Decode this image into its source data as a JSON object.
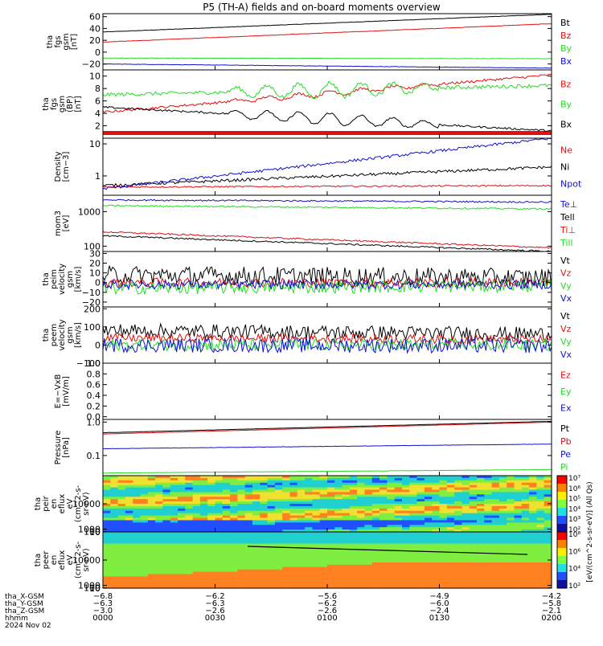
{
  "title": "P5 (TH-A) fields and on-board moments overview",
  "colors": {
    "black": "#000000",
    "red": "#e01010",
    "green": "#22dd22",
    "blue": "#1010d0"
  },
  "chart_data": [
    {
      "type": "line",
      "ylabel": [
        "tha",
        "fgs",
        "gsm",
        "[nT]"
      ],
      "ylim": [
        -30,
        65
      ],
      "ticks": [
        "60",
        "40",
        "20",
        "0",
        "−20"
      ],
      "tick_values": [
        60,
        40,
        20,
        0,
        -20
      ],
      "series": [
        {
          "name": "Bt",
          "color": "black",
          "start": 34,
          "end": 64,
          "noise": 0.3
        },
        {
          "name": "Bz",
          "color": "red",
          "start": 17,
          "end": 48,
          "noise": 0.3
        },
        {
          "name": "By",
          "color": "green",
          "start": -10,
          "end": -11,
          "noise": 0.3
        },
        {
          "name": "Bx",
          "color": "blue",
          "start": -20,
          "end": -27,
          "noise": 0.3
        }
      ]
    },
    {
      "type": "line",
      "ylabel": [
        "tha",
        "fgs",
        "gsm",
        "(BP)",
        "[nT]"
      ],
      "ylim": [
        0,
        11
      ],
      "ticks": [
        "10",
        "8",
        "6",
        "4",
        "2"
      ],
      "tick_values": [
        10,
        8,
        6,
        4,
        2
      ],
      "series": [
        {
          "name": "Bz",
          "color": "red",
          "start": 4.2,
          "end": 10.2,
          "noise": 0.2,
          "osc": 0.4
        },
        {
          "name": "By",
          "color": "green",
          "start": 7.0,
          "end": 8.5,
          "noise": 0.3,
          "osc": 1.2
        },
        {
          "name": "Bx",
          "color": "black",
          "start": 5.0,
          "end": 1.2,
          "noise": 0.15,
          "osc": 1.0
        }
      ]
    },
    {
      "type": "line",
      "ylabel": [
        "Density",
        "[cm−3]"
      ],
      "ylim": [
        0.25,
        15
      ],
      "log": true,
      "ticks": [
        "10",
        "1"
      ],
      "tick_values": [
        10,
        1
      ],
      "series": [
        {
          "name": "Ne",
          "color": "red",
          "start": 0.45,
          "end": 0.5,
          "noise": 0.05
        },
        {
          "name": "Ni",
          "color": "black",
          "start": 0.5,
          "end": 1.9,
          "noise": 0.1
        },
        {
          "name": "Npot",
          "color": "blue",
          "start": 0.4,
          "end": 15,
          "noise": 0.1
        }
      ]
    },
    {
      "type": "line",
      "ylabel": [
        "mom3",
        "[eV]"
      ],
      "ylim": [
        70,
        3000
      ],
      "log": true,
      "ticks": [
        "1000",
        "100"
      ],
      "tick_values": [
        1000,
        100
      ],
      "series": [
        {
          "name": "Te⊥",
          "color": "blue",
          "start": 2200,
          "end": 1900,
          "noise": 0.05
        },
        {
          "name": "Tell",
          "color": "black",
          "start": 200,
          "end": 70,
          "noise": 0.05
        },
        {
          "name": "Ti⊥",
          "color": "red",
          "start": 260,
          "end": 90,
          "noise": 0.05
        },
        {
          "name": "Till",
          "color": "green",
          "start": 1500,
          "end": 1200,
          "noise": 0.05
        }
      ]
    },
    {
      "type": "line",
      "ylabel": [
        "tha",
        "peim",
        "velocity",
        "gsm",
        "[km/s]"
      ],
      "ylim": [
        -25,
        32
      ],
      "ticks": [
        "30",
        "20",
        "10",
        "0",
        "−10",
        "−20"
      ],
      "tick_values": [
        30,
        20,
        10,
        0,
        -10,
        -20
      ],
      "series": [
        {
          "name": "Vt",
          "color": "black",
          "start": 8,
          "end": 5,
          "noise": 6
        },
        {
          "name": "Vz",
          "color": "red",
          "start": 0,
          "end": 0,
          "noise": 3
        },
        {
          "name": "Vy",
          "color": "green",
          "start": -6,
          "end": -3,
          "noise": 4
        },
        {
          "name": "Vx",
          "color": "blue",
          "start": -2,
          "end": -2,
          "noise": 3
        }
      ]
    },
    {
      "type": "line",
      "ylabel": [
        "tha",
        "peem",
        "velocity",
        "gsm",
        "[km/s]"
      ],
      "ylim": [
        -100,
        210
      ],
      "ticks": [
        "200",
        "100",
        "0",
        "−100"
      ],
      "tick_values": [
        200,
        100,
        0,
        -100
      ],
      "series": [
        {
          "name": "Vt",
          "color": "black",
          "start": 80,
          "end": 60,
          "noise": 25
        },
        {
          "name": "Vz",
          "color": "red",
          "start": 40,
          "end": 30,
          "noise": 15
        },
        {
          "name": "Vy",
          "color": "green",
          "start": 0,
          "end": 0,
          "noise": 20
        },
        {
          "name": "Vx",
          "color": "blue",
          "start": 0,
          "end": -5,
          "noise": 25
        }
      ]
    },
    {
      "type": "line",
      "ylabel": [
        "E=−VxB",
        "[mV/m]"
      ],
      "ylim": [
        -0.05,
        1.0
      ],
      "ticks": [
        "1.0",
        "0.8",
        "0.6",
        "0.4",
        "0.2",
        "0.0"
      ],
      "tick_values": [
        1.0,
        0.8,
        0.6,
        0.4,
        0.2,
        0.0
      ],
      "series": [
        {
          "name": "Ez",
          "color": "red"
        },
        {
          "name": "Ey",
          "color": "green"
        },
        {
          "name": "Ex",
          "color": "blue"
        }
      ]
    },
    {
      "type": "line",
      "ylabel": [
        "Pressure",
        "[nPa]"
      ],
      "ylim": [
        0.025,
        1.2
      ],
      "log": true,
      "ticks": [
        "1.0",
        "0.1"
      ],
      "tick_values": [
        1.0,
        0.1
      ],
      "series": [
        {
          "name": "Pt",
          "color": "black",
          "start": 0.48,
          "end": 1.05,
          "noise": 0.005
        },
        {
          "name": "Pb",
          "color": "red",
          "start": 0.44,
          "end": 1.0,
          "noise": 0.005
        },
        {
          "name": "Pe",
          "color": "blue",
          "start": 0.16,
          "end": 0.22,
          "noise": 0.01
        },
        {
          "name": "Pi",
          "color": "green",
          "start": 0.03,
          "end": 0.038,
          "noise": 0.01
        }
      ]
    },
    {
      "type": "heatmap",
      "ylabel": [
        "tha",
        "peir",
        "en",
        "eflux",
        "eV",
        "(cm^2-s-",
        "sr-eV)"
      ],
      "ticks": [
        "10000",
        "1000",
        "100",
        "10"
      ],
      "tick_values": [
        10000,
        1000,
        100,
        10
      ],
      "ylim": [
        7,
        20000
      ]
    },
    {
      "type": "heatmap",
      "ylabel": [
        "tha",
        "peer",
        "en",
        "eflux",
        "eV",
        "(cm^2-s-",
        "sr-eV)"
      ],
      "ticks": [
        "10000",
        "1000",
        "100",
        "10"
      ],
      "tick_values": [
        10000,
        1000,
        100,
        10
      ],
      "ylim": [
        7,
        20000
      ]
    }
  ],
  "colorbar": {
    "label": "[eV/(cm^2-s-sr-eV)] (All Qs)",
    "ticks": [
      "10⁷",
      "10⁶",
      "10⁵",
      "10⁴",
      "10³",
      "10²"
    ],
    "ticks2": [
      "10⁸",
      "10⁶",
      "10⁴",
      "10²"
    ]
  },
  "xaxis": {
    "rows": [
      {
        "label": "tha_X-GSM",
        "values": [
          "−6.8",
          "−6.2",
          "−5.6",
          "−4.9",
          "−4.2"
        ]
      },
      {
        "label": "tha_Y-GSM",
        "values": [
          "−6.3",
          "−6.3",
          "−6.2",
          "−6.0",
          "−5.8"
        ]
      },
      {
        "label": "tha_Z-GSM",
        "values": [
          "−3.0",
          "−2.6",
          "−2.6",
          "−2.4",
          "−2.1"
        ]
      },
      {
        "label": "hhmm",
        "values": [
          "0000",
          "0030",
          "0100",
          "0130",
          "0200"
        ]
      }
    ],
    "date": "2024 Nov 02"
  }
}
